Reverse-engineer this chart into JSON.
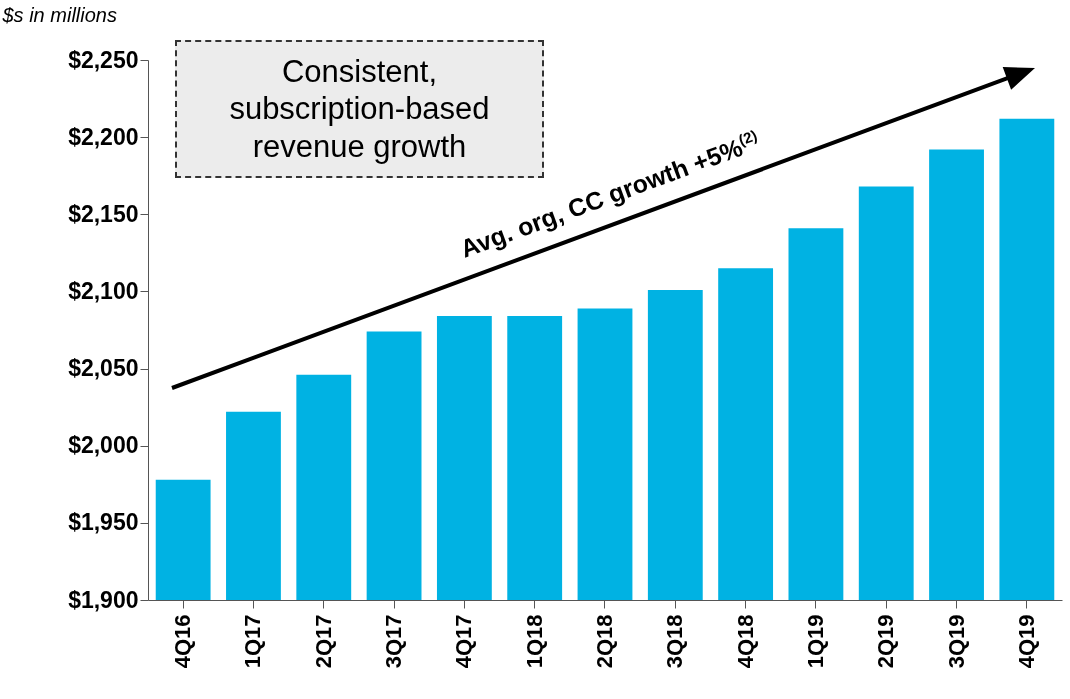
{
  "chart_data": {
    "type": "bar",
    "ylabel": "$s in millions",
    "categories": [
      "4Q16",
      "1Q17",
      "2Q17",
      "3Q17",
      "4Q17",
      "1Q18",
      "2Q18",
      "3Q18",
      "4Q18",
      "1Q19",
      "2Q19",
      "3Q19",
      "4Q19"
    ],
    "values": [
      1978,
      2022,
      2046,
      2074,
      2084,
      2084,
      2089,
      2101,
      2115,
      2141,
      2168,
      2192,
      2212
    ],
    "color": "#00b2e3",
    "ylim": [
      1900,
      2250
    ],
    "yticks": [
      {
        "value": 1900,
        "label": "$1,900"
      },
      {
        "value": 1950,
        "label": "$1,950"
      },
      {
        "value": 2000,
        "label": "$2,000"
      },
      {
        "value": 2050,
        "label": "$2,050"
      },
      {
        "value": 2100,
        "label": "$2,100"
      },
      {
        "value": 2150,
        "label": "$2,150"
      },
      {
        "value": 2200,
        "label": "$2,200"
      },
      {
        "value": 2250,
        "label": "$2,250"
      }
    ],
    "grid": false,
    "annotations": [
      "Consistent, subscription-based revenue growth",
      "Avg. org, CC growth +5%$^{(2)}$"
    ]
  }
}
